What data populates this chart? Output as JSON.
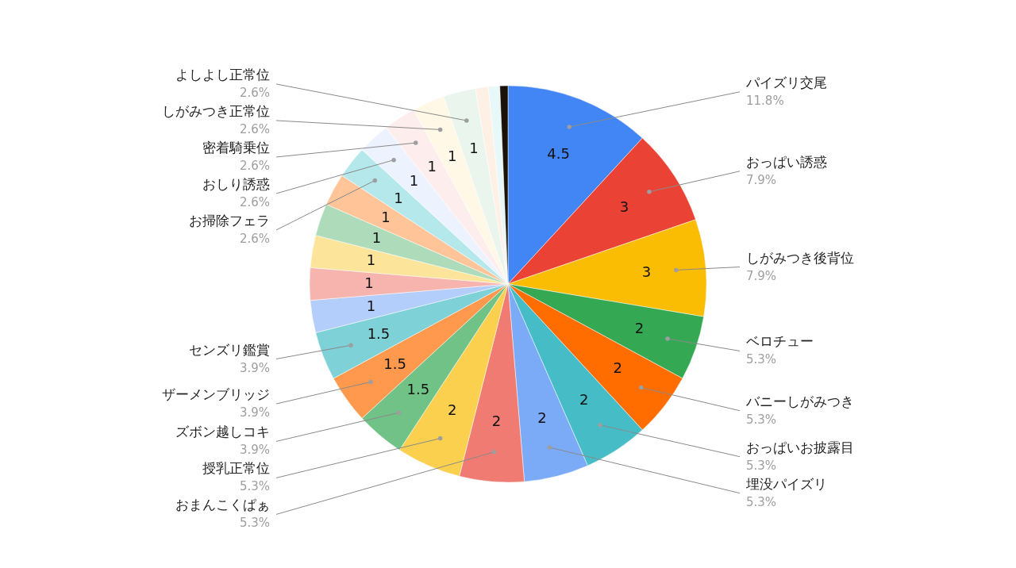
{
  "chart_data": {
    "type": "pie",
    "categories": [
      "パイズリ交尾",
      "おっぱい誘惑",
      "しがみつき後背位",
      "ベロチュー",
      "バニーしがみつき",
      "おっぱいお披露目",
      "埋没パイズリ",
      "おまんこくぱぁ",
      "授乳正常位",
      "ズボン越しコキ",
      "ザーメンブリッジ",
      "センズリ鑑賞",
      null,
      null,
      null,
      null,
      null,
      "お掃除フェラ",
      "おしり誘惑",
      "密着騎乗位",
      "しがみつき正常位",
      "よしよし正常位",
      null,
      null,
      null
    ],
    "values": [
      4.5,
      3,
      3,
      2,
      2,
      2,
      2,
      2,
      2,
      1.5,
      1.5,
      1.5,
      1,
      1,
      1,
      1,
      1,
      1,
      1,
      1,
      1,
      1,
      0.4,
      0.35,
      0.25
    ],
    "value_labels": [
      "4.5",
      "3",
      "3",
      "2",
      "2",
      "2",
      "2",
      "2",
      "2",
      "1.5",
      "1.5",
      "1.5",
      "1",
      "1",
      "1",
      "1",
      "1",
      "1",
      "1",
      "1",
      "1",
      "1",
      null,
      null,
      null
    ],
    "colors": [
      "#4285f4",
      "#ea4335",
      "#fbbc04",
      "#34a853",
      "#ff6d01",
      "#46bdc6",
      "#7baaf7",
      "#f07b72",
      "#fcd04f",
      "#71c287",
      "#ff994d",
      "#7ed1d7",
      "#b3cefb",
      "#f7b4ae",
      "#fde49b",
      "#aedcba",
      "#ffc599",
      "#b5e8eb",
      "#ecf3fe",
      "#fdeeed",
      "#fff8e6",
      "#eaf6ed",
      "#fff0e6",
      "#e8f7f8",
      "#1a1208"
    ],
    "annotations": [
      "11.8%",
      "7.9%",
      "7.9%",
      "5.3%",
      "5.3%",
      "5.3%",
      "5.3%",
      "5.3%",
      "5.3%",
      "3.9%",
      "3.9%",
      "3.9%",
      "2.6%",
      "2.6%",
      "2.6%",
      "2.6%",
      "2.6%"
    ],
    "legend": false
  }
}
